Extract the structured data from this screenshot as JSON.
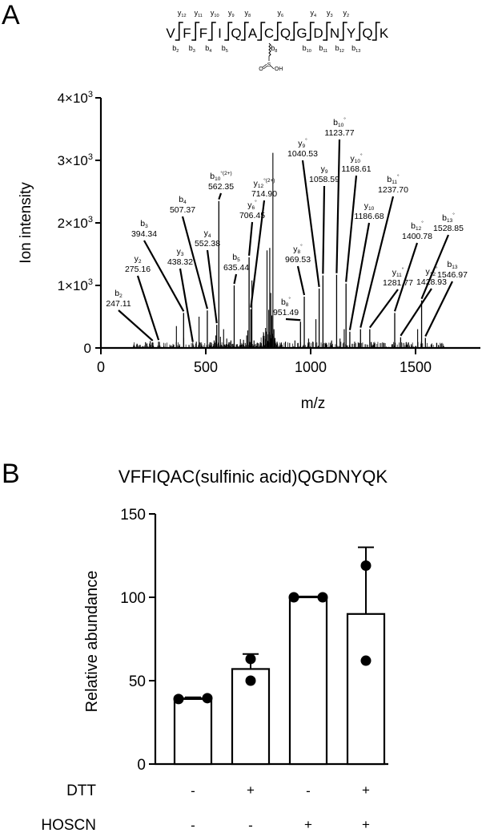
{
  "panel_a": {
    "letter": "A",
    "sequence": {
      "residues": [
        "V",
        "F",
        "F",
        "I",
        "Q",
        "A",
        "C",
        "Q",
        "G",
        "D",
        "N",
        "Y",
        "Q",
        "K"
      ],
      "y_labels": [
        {
          "after": 1,
          "ion": "y",
          "n": "12"
        },
        {
          "after": 2,
          "ion": "y",
          "n": "11"
        },
        {
          "after": 3,
          "ion": "y",
          "n": "10"
        },
        {
          "after": 4,
          "ion": "y",
          "n": "9"
        },
        {
          "after": 5,
          "ion": "y",
          "n": "8"
        },
        {
          "after": 7,
          "ion": "y",
          "n": "6"
        },
        {
          "after": 9,
          "ion": "y",
          "n": "4"
        },
        {
          "after": 10,
          "ion": "y",
          "n": "3"
        },
        {
          "after": 11,
          "ion": "y",
          "n": "2"
        }
      ],
      "b_labels": [
        {
          "after": 1,
          "ion": "b",
          "n": "2"
        },
        {
          "after": 2,
          "ion": "b",
          "n": "3"
        },
        {
          "after": 3,
          "ion": "b",
          "n": "4"
        },
        {
          "after": 4,
          "ion": "b",
          "n": "5"
        },
        {
          "after": 7,
          "ion": "b",
          "n": "8"
        },
        {
          "after": 9,
          "ion": "b",
          "n": "10"
        },
        {
          "after": 10,
          "ion": "b",
          "n": "11"
        },
        {
          "after": 11,
          "ion": "b",
          "n": "12"
        },
        {
          "after": 12,
          "ion": "b",
          "n": "13"
        }
      ],
      "modification": {
        "residue_index": 6,
        "atom": "S",
        "left": "O",
        "right": "OH"
      }
    }
  },
  "panel_b": {
    "letter": "B",
    "title": "VFFIQAC(sulfinic acid)QGDNYQK",
    "conditions": [
      {
        "label": "DTT",
        "values": [
          "-",
          "+",
          "-",
          "+"
        ]
      },
      {
        "label": "HOSCN",
        "values": [
          "-",
          "-",
          "+",
          "+"
        ]
      }
    ]
  },
  "chart_data": [
    {
      "type": "bar",
      "subtype": "mass-spectrum",
      "title": "",
      "xlabel": "m/z",
      "ylabel": "Ion intensity",
      "xlim": [
        0,
        1800
      ],
      "ylim": [
        0,
        4000
      ],
      "xticks": [
        0,
        500,
        1000,
        1500
      ],
      "xtick_labels": [
        "0",
        "500",
        "1000",
        "1500"
      ],
      "yticks": [
        0,
        1000,
        2000,
        3000,
        4000
      ],
      "ytick_labels": [
        "0",
        "1×10³",
        "2×10³",
        "3×10³",
        "4×10³"
      ],
      "grid": false,
      "annotated_peaks": [
        {
          "ion": "b",
          "n": "2",
          "mod": "",
          "mz": 247.11,
          "intensity": 90,
          "lx": 148,
          "ly": 381
        },
        {
          "ion": "y",
          "n": "2",
          "mod": "",
          "mz": 275.16,
          "intensity": 100,
          "lx": 172,
          "ly": 338
        },
        {
          "ion": "b",
          "n": "3",
          "mod": "",
          "mz": 394.34,
          "intensity": 560,
          "lx": 180,
          "ly": 294
        },
        {
          "ion": "y",
          "n": "3",
          "mod": "",
          "mz": 438.32,
          "intensity": 70,
          "lx": 225,
          "ly": 329
        },
        {
          "ion": "b",
          "n": "4",
          "mod": "",
          "mz": 507.37,
          "intensity": 600,
          "lx": 228,
          "ly": 264
        },
        {
          "ion": "y",
          "n": "4",
          "mod": "",
          "mz": 552.38,
          "intensity": 370,
          "lx": 259,
          "ly": 306
        },
        {
          "ion": "b",
          "n": "10",
          "mod": "°(2+)",
          "mz": 562.35,
          "intensity": 2350,
          "lx": 276,
          "ly": 235
        },
        {
          "ion": "b",
          "n": "5",
          "mod": "",
          "mz": 635.44,
          "intensity": 1000,
          "lx": 295,
          "ly": 336
        },
        {
          "ion": "y",
          "n": "6",
          "mod": "°",
          "mz": 706.45,
          "intensity": 1450,
          "lx": 315,
          "ly": 271
        },
        {
          "ion": "y",
          "n": "12",
          "mod": "°(2+)",
          "mz": 714.9,
          "intensity": 620,
          "lx": 330,
          "ly": 244
        },
        {
          "ion": "b",
          "n": "8",
          "mod": "°",
          "mz": 951.49,
          "intensity": 420,
          "lx": 357,
          "ly": 392
        },
        {
          "ion": "y",
          "n": "8",
          "mod": "°",
          "mz": 969.53,
          "intensity": 820,
          "lx": 372,
          "ly": 326
        },
        {
          "ion": "y",
          "n": "9",
          "mod": "°",
          "mz": 1040.53,
          "intensity": 950,
          "lx": 378,
          "ly": 194
        },
        {
          "ion": "y",
          "n": "9",
          "mod": "",
          "mz": 1058.59,
          "intensity": 1160,
          "lx": 405,
          "ly": 226
        },
        {
          "ion": "b",
          "n": "10",
          "mod": "°",
          "mz": 1123.77,
          "intensity": 1170,
          "lx": 424,
          "ly": 168
        },
        {
          "ion": "y",
          "n": "10",
          "mod": "°",
          "mz": 1168.61,
          "intensity": 1030,
          "lx": 445,
          "ly": 213
        },
        {
          "ion": "y",
          "n": "10",
          "mod": "",
          "mz": 1186.68,
          "intensity": 260,
          "lx": 461,
          "ly": 272
        },
        {
          "ion": "b",
          "n": "11",
          "mod": "°",
          "mz": 1237.7,
          "intensity": 300,
          "lx": 491,
          "ly": 239
        },
        {
          "ion": "y",
          "n": "11",
          "mod": "°",
          "mz": 1281.77,
          "intensity": 300,
          "lx": 497,
          "ly": 355
        },
        {
          "ion": "b",
          "n": "12",
          "mod": "°",
          "mz": 1400.78,
          "intensity": 560,
          "lx": 521,
          "ly": 297
        },
        {
          "ion": "y",
          "n": "12",
          "mod": "°",
          "mz": 1428.93,
          "intensity": 170,
          "lx": 539,
          "ly": 354
        },
        {
          "ion": "b",
          "n": "13",
          "mod": "°",
          "mz": 1528.85,
          "intensity": 760,
          "lx": 560,
          "ly": 287
        },
        {
          "ion": "b",
          "n": "13",
          "mod": "",
          "mz": 1546.97,
          "intensity": 160,
          "lx": 565,
          "ly": 345
        }
      ],
      "unlabeled_peaks": [
        {
          "mz": 180,
          "intensity": 40
        },
        {
          "mz": 235,
          "intensity": 110
        },
        {
          "mz": 300,
          "intensity": 30
        },
        {
          "mz": 345,
          "intensity": 40
        },
        {
          "mz": 360,
          "intensity": 350
        },
        {
          "mz": 395,
          "intensity": 160
        },
        {
          "mz": 420,
          "intensity": 50
        },
        {
          "mz": 455,
          "intensity": 100
        },
        {
          "mz": 468,
          "intensity": 500
        },
        {
          "mz": 480,
          "intensity": 60
        },
        {
          "mz": 520,
          "intensity": 90
        },
        {
          "mz": 540,
          "intensity": 120
        },
        {
          "mz": 548,
          "intensity": 200
        },
        {
          "mz": 570,
          "intensity": 180
        },
        {
          "mz": 585,
          "intensity": 300
        },
        {
          "mz": 600,
          "intensity": 150
        },
        {
          "mz": 610,
          "intensity": 90
        },
        {
          "mz": 620,
          "intensity": 120
        },
        {
          "mz": 650,
          "intensity": 60
        },
        {
          "mz": 665,
          "intensity": 140
        },
        {
          "mz": 680,
          "intensity": 130
        },
        {
          "mz": 695,
          "intensity": 200
        },
        {
          "mz": 700,
          "intensity": 280
        },
        {
          "mz": 720,
          "intensity": 1080
        },
        {
          "mz": 730,
          "intensity": 120
        },
        {
          "mz": 745,
          "intensity": 80
        },
        {
          "mz": 760,
          "intensity": 90
        },
        {
          "mz": 775,
          "intensity": 160
        },
        {
          "mz": 785,
          "intensity": 320
        },
        {
          "mz": 792,
          "intensity": 1560
        },
        {
          "mz": 800,
          "intensity": 610
        },
        {
          "mz": 805,
          "intensity": 1600
        },
        {
          "mz": 810,
          "intensity": 880
        },
        {
          "mz": 815,
          "intensity": 520
        },
        {
          "mz": 820,
          "intensity": 3120
        },
        {
          "mz": 825,
          "intensity": 300
        },
        {
          "mz": 830,
          "intensity": 160
        },
        {
          "mz": 840,
          "intensity": 100
        },
        {
          "mz": 860,
          "intensity": 80
        },
        {
          "mz": 880,
          "intensity": 100
        },
        {
          "mz": 900,
          "intensity": 80
        },
        {
          "mz": 925,
          "intensity": 120
        },
        {
          "mz": 940,
          "intensity": 80
        },
        {
          "mz": 990,
          "intensity": 150
        },
        {
          "mz": 1010,
          "intensity": 100
        },
        {
          "mz": 1025,
          "intensity": 460
        },
        {
          "mz": 1075,
          "intensity": 80
        },
        {
          "mz": 1100,
          "intensity": 120
        },
        {
          "mz": 1140,
          "intensity": 150
        },
        {
          "mz": 1160,
          "intensity": 300
        },
        {
          "mz": 1210,
          "intensity": 100
        },
        {
          "mz": 1230,
          "intensity": 80
        },
        {
          "mz": 1260,
          "intensity": 60
        },
        {
          "mz": 1300,
          "intensity": 50
        },
        {
          "mz": 1350,
          "intensity": 80
        },
        {
          "mz": 1390,
          "intensity": 60
        },
        {
          "mz": 1460,
          "intensity": 50
        },
        {
          "mz": 1480,
          "intensity": 60
        },
        {
          "mz": 1510,
          "intensity": 300
        },
        {
          "mz": 1610,
          "intensity": 40
        }
      ]
    },
    {
      "type": "bar",
      "title": "VFFIQAC(sulfinic acid)QGDNYQK",
      "xlabel": "",
      "ylabel": "Relative abundance",
      "ylim": [
        0,
        150
      ],
      "yticks": [
        0,
        50,
        100,
        150
      ],
      "grid": false,
      "categories": [
        "DTT- / HOSCN-",
        "DTT+ / HOSCN-",
        "DTT- / HOSCN+",
        "DTT+ / HOSCN+"
      ],
      "values": [
        39,
        57,
        100,
        90
      ],
      "error_upper": [
        40,
        66,
        100,
        130
      ],
      "points": [
        [
          39,
          39.5
        ],
        [
          63,
          50
        ],
        [
          100,
          100
        ],
        [
          119,
          62
        ]
      ]
    }
  ]
}
